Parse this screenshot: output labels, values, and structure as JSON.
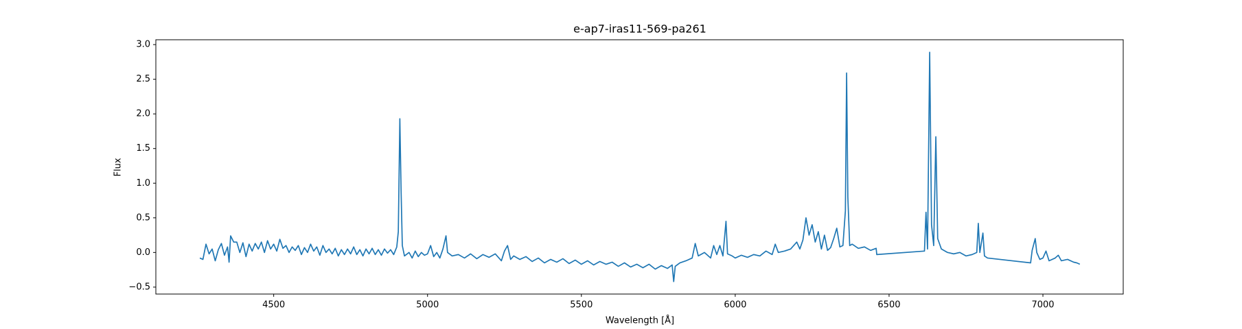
{
  "chart_data": {
    "type": "line",
    "title": "e-ap7-iras11-569-pa261",
    "x_label": "Wavelength [Å]",
    "y_label": "Flux",
    "color": "#1f77b4",
    "xlim": [
      4117,
      7261
    ],
    "ylim": [
      -0.6,
      3.07
    ],
    "xticks": [
      4500,
      5000,
      5500,
      6000,
      6500,
      7000
    ],
    "yticks": [
      {
        "value": -0.5,
        "label": "−0.5"
      },
      {
        "value": 0,
        "label": "0.0"
      },
      0.5,
      {
        "value": 1,
        "label": "1.0"
      },
      1.5,
      {
        "value": 2,
        "label": "2.0"
      },
      2.5,
      {
        "value": 3,
        "label": "3.0"
      }
    ],
    "x": [
      4260,
      4270,
      4280,
      4290,
      4300,
      4310,
      4320,
      4330,
      4340,
      4350,
      4355,
      4360,
      4370,
      4380,
      4390,
      4400,
      4410,
      4420,
      4430,
      4440,
      4450,
      4460,
      4470,
      4480,
      4490,
      4500,
      4510,
      4520,
      4530,
      4540,
      4550,
      4560,
      4570,
      4580,
      4590,
      4600,
      4610,
      4620,
      4630,
      4640,
      4650,
      4660,
      4670,
      4680,
      4690,
      4700,
      4710,
      4720,
      4730,
      4740,
      4750,
      4760,
      4770,
      4780,
      4790,
      4800,
      4810,
      4820,
      4830,
      4840,
      4850,
      4860,
      4870,
      4880,
      4890,
      4900,
      4905,
      4910,
      4914,
      4918,
      4925,
      4940,
      4950,
      4960,
      4970,
      4980,
      4990,
      5000,
      5010,
      5020,
      5030,
      5040,
      5050,
      5060,
      5065,
      5080,
      5100,
      5120,
      5140,
      5160,
      5180,
      5200,
      5220,
      5240,
      5250,
      5260,
      5270,
      5280,
      5300,
      5320,
      5340,
      5360,
      5380,
      5400,
      5420,
      5440,
      5460,
      5480,
      5500,
      5520,
      5540,
      5560,
      5580,
      5600,
      5620,
      5640,
      5660,
      5680,
      5700,
      5720,
      5740,
      5760,
      5780,
      5795,
      5800,
      5805,
      5820,
      5840,
      5860,
      5870,
      5880,
      5900,
      5920,
      5930,
      5940,
      5950,
      5960,
      5970,
      5975,
      5990,
      6000,
      6020,
      6040,
      6060,
      6080,
      6100,
      6120,
      6130,
      6140,
      6160,
      6180,
      6200,
      6210,
      6220,
      6230,
      6240,
      6250,
      6260,
      6270,
      6280,
      6290,
      6300,
      6310,
      6320,
      6330,
      6340,
      6350,
      6358,
      6362,
      6366,
      6372,
      6380,
      6400,
      6420,
      6440,
      6458,
      6460,
      6615,
      6620,
      6625,
      6632,
      6638,
      6645,
      6652,
      6658,
      6670,
      6690,
      6710,
      6730,
      6750,
      6770,
      6785,
      6790,
      6795,
      6805,
      6810,
      6820,
      6960,
      6965,
      6975,
      6980,
      6990,
      7000,
      7010,
      7020,
      7040,
      7050,
      7060,
      7080,
      7100,
      7110,
      7120
    ],
    "values": [
      -0.08,
      -0.1,
      0.12,
      -0.02,
      0.05,
      -0.12,
      0.04,
      0.13,
      -0.04,
      0.08,
      -0.14,
      0.24,
      0.15,
      0.15,
      0.0,
      0.14,
      -0.06,
      0.12,
      0.02,
      0.13,
      0.05,
      0.15,
      0.0,
      0.17,
      0.05,
      0.12,
      0.02,
      0.19,
      0.06,
      0.1,
      0.0,
      0.08,
      0.03,
      0.1,
      -0.03,
      0.07,
      0.0,
      0.12,
      0.02,
      0.08,
      -0.04,
      0.1,
      0.0,
      0.05,
      -0.02,
      0.06,
      -0.05,
      0.04,
      -0.03,
      0.05,
      -0.02,
      0.08,
      -0.03,
      0.04,
      -0.05,
      0.05,
      -0.02,
      0.06,
      -0.03,
      0.04,
      -0.04,
      0.05,
      -0.01,
      0.04,
      -0.03,
      0.08,
      0.3,
      1.93,
      0.9,
      0.1,
      -0.05,
      0.0,
      -0.08,
      0.02,
      -0.06,
      0.0,
      -0.04,
      -0.02,
      0.1,
      -0.06,
      0.0,
      -0.08,
      0.05,
      0.24,
      0.0,
      -0.05,
      -0.03,
      -0.08,
      -0.02,
      -0.09,
      -0.03,
      -0.07,
      -0.02,
      -0.12,
      0.02,
      0.1,
      -0.1,
      -0.05,
      -0.1,
      -0.06,
      -0.13,
      -0.08,
      -0.15,
      -0.1,
      -0.14,
      -0.09,
      -0.16,
      -0.11,
      -0.17,
      -0.12,
      -0.18,
      -0.13,
      -0.17,
      -0.14,
      -0.2,
      -0.15,
      -0.21,
      -0.17,
      -0.22,
      -0.17,
      -0.24,
      -0.19,
      -0.23,
      -0.18,
      -0.42,
      -0.2,
      -0.15,
      -0.12,
      -0.08,
      0.13,
      -0.05,
      0.0,
      -0.08,
      0.1,
      -0.03,
      0.1,
      -0.05,
      0.45,
      -0.02,
      -0.05,
      -0.08,
      -0.04,
      -0.07,
      -0.03,
      -0.05,
      0.02,
      -0.03,
      0.12,
      0.0,
      0.02,
      0.05,
      0.15,
      0.05,
      0.18,
      0.5,
      0.25,
      0.4,
      0.15,
      0.3,
      0.05,
      0.25,
      0.03,
      0.07,
      0.2,
      0.35,
      0.08,
      0.1,
      0.6,
      2.59,
      0.8,
      0.1,
      0.12,
      0.06,
      0.08,
      0.03,
      0.06,
      -0.03,
      0.02,
      0.58,
      0.05,
      2.89,
      0.4,
      0.1,
      1.67,
      0.2,
      0.05,
      0.0,
      -0.02,
      0.0,
      -0.05,
      -0.03,
      0.0,
      0.42,
      0.0,
      0.28,
      -0.05,
      -0.08,
      -0.15,
      0.03,
      0.2,
      0.0,
      -0.1,
      -0.08,
      0.02,
      -0.12,
      -0.08,
      -0.04,
      -0.12,
      -0.1,
      -0.14,
      -0.15,
      -0.17
    ]
  }
}
